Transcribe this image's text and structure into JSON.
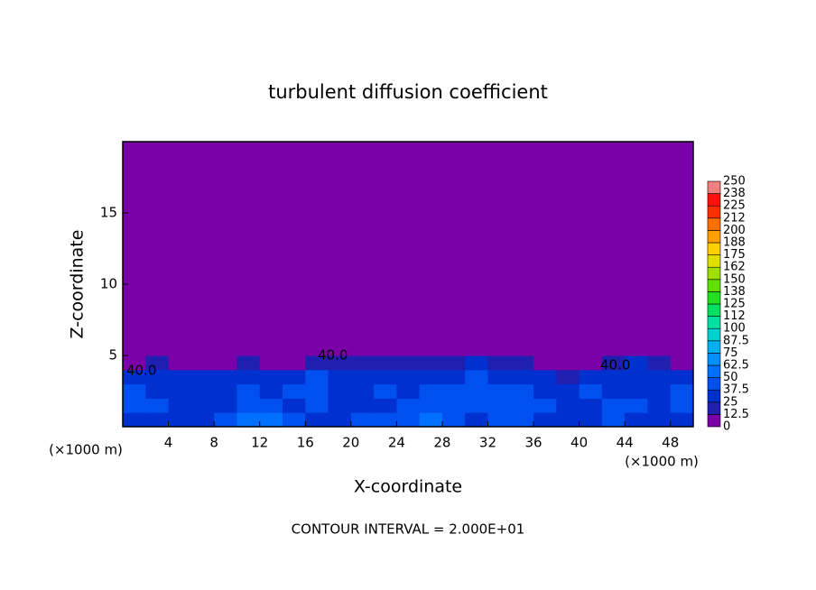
{
  "chart_data": {
    "type": "contour",
    "title": "turbulent diffusion coefficient",
    "x_label": "X-coordinate",
    "y_label": "Z-coordinate",
    "x_unit": "(×1000 m)",
    "y_unit": "(×1000 m)",
    "footnote": "CONTOUR INTERVAL = 2.000E+01",
    "contour_labels": [
      "40.0",
      "40.0",
      "40.0"
    ],
    "xlim": [
      0,
      50
    ],
    "ylim": [
      0,
      20
    ],
    "xticks": [
      4,
      8,
      12,
      16,
      20,
      24,
      28,
      32,
      36,
      40,
      44,
      48
    ],
    "yticks": [
      5,
      10,
      15
    ],
    "x_edges": [
      0,
      2,
      4,
      6,
      8,
      10,
      12,
      14,
      16,
      18,
      20,
      22,
      24,
      26,
      28,
      30,
      32,
      34,
      36,
      38,
      40,
      42,
      44,
      46,
      48,
      50
    ],
    "z_edges": [
      0,
      1,
      2,
      3,
      4,
      5,
      20
    ],
    "field": [
      [
        35,
        35,
        30,
        35,
        40,
        50,
        60,
        40,
        35,
        30,
        40,
        45,
        45,
        50,
        40,
        35,
        40,
        40,
        35,
        35,
        35,
        40,
        35,
        30,
        35
      ],
      [
        45,
        40,
        35,
        30,
        30,
        45,
        40,
        35,
        40,
        30,
        30,
        35,
        45,
        40,
        40,
        45,
        40,
        45,
        40,
        30,
        35,
        40,
        40,
        35,
        40
      ],
      [
        40,
        35,
        30,
        30,
        25,
        40,
        30,
        40,
        40,
        25,
        25,
        40,
        30,
        40,
        40,
        40,
        40,
        40,
        35,
        30,
        40,
        35,
        30,
        30,
        40
      ],
      [
        35,
        30,
        30,
        30,
        25,
        35,
        25,
        35,
        40,
        25,
        30,
        35,
        30,
        35,
        35,
        40,
        35,
        35,
        30,
        20,
        30,
        30,
        25,
        30,
        35
      ],
      [
        10,
        15,
        5,
        10,
        10,
        15,
        10,
        10,
        20,
        20,
        20,
        20,
        15,
        20,
        20,
        25,
        15,
        15,
        10,
        5,
        10,
        15,
        25,
        20,
        10
      ],
      [
        0,
        0,
        0,
        0,
        0,
        0,
        0,
        0,
        0,
        0,
        0,
        0,
        0,
        0,
        0,
        0,
        0,
        0,
        0,
        0,
        0,
        0,
        0,
        0,
        0
      ]
    ],
    "levels": [
      0,
      12.5,
      25,
      37.5,
      50,
      62.5,
      75,
      87.5,
      100,
      {
        "value": 112.5,
        "label": "112"
      },
      125,
      {
        "value": 137.5,
        "label": "138"
      },
      150,
      {
        "value": 162.5,
        "label": "162"
      },
      175,
      {
        "value": 187.5,
        "label": "188"
      },
      200,
      {
        "value": 212.5,
        "label": "212"
      },
      225,
      {
        "value": 237.5,
        "label": "238"
      },
      250
    ],
    "colors": [
      "#7a00a8",
      "#2020b0",
      "#0030d0",
      "#0050f0",
      "#0070ff",
      "#0090ff",
      "#00b0f0",
      "#00d0d0",
      "#00e0a0",
      "#00e060",
      "#20e020",
      "#60e000",
      "#a0e000",
      "#e0e000",
      "#ffd000",
      "#ffa000",
      "#ff7000",
      "#ff3000",
      "#ff1010",
      "#f08080"
    ]
  }
}
